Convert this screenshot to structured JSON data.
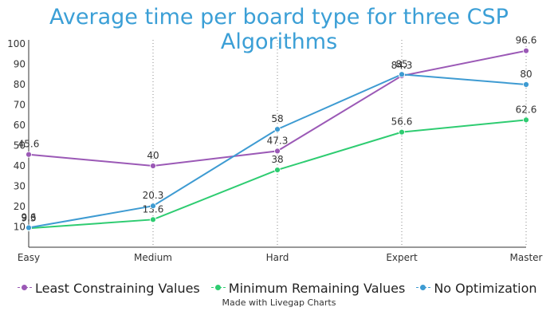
{
  "chart_data": {
    "type": "line",
    "title": "Average time per board type for three CSP Algorithms",
    "categories": [
      "Easy",
      "Medium",
      "Hard",
      "Expert",
      "Master"
    ],
    "yticks": [
      10,
      20,
      30,
      40,
      50,
      60,
      70,
      80,
      90,
      100
    ],
    "ylim": [
      0,
      100
    ],
    "xlabel": "",
    "ylabel": "",
    "grid": "vertical dotted",
    "legend_position": "bottom",
    "series": [
      {
        "name": "Least Constraining Values",
        "color": "#9b59b6",
        "values": [
          45.6,
          40,
          47.3,
          84.3,
          96.6
        ],
        "labels": [
          "45.6",
          "40",
          "47.3",
          "84.3",
          "96.6"
        ]
      },
      {
        "name": "Minimum Remaining Values",
        "color": "#2ecc71",
        "values": [
          9.3,
          13.6,
          38,
          56.6,
          62.6
        ],
        "labels": [
          "9.3",
          "13.6",
          "38",
          "56.6",
          "62.6"
        ]
      },
      {
        "name": "No Optimization",
        "color": "#3e9bd2",
        "values": [
          9.6,
          20.3,
          58,
          85,
          80
        ],
        "labels": [
          "9.6",
          "20.3",
          "58",
          "85",
          "80"
        ]
      }
    ]
  },
  "credit": "Made with Livegap Charts"
}
